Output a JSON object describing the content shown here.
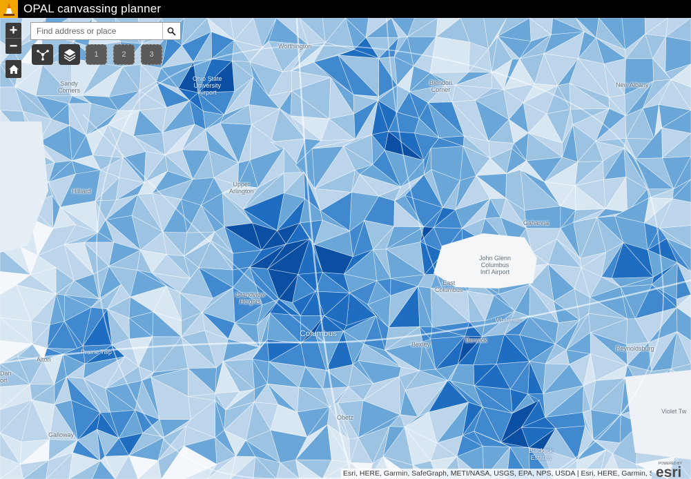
{
  "app": {
    "title": "OPAL canvassing planner",
    "logo_icon": "traffic-cone-icon"
  },
  "search": {
    "placeholder": "Find address or place",
    "value": ""
  },
  "zoom": {
    "in_label": "+",
    "out_label": "−"
  },
  "tools": {
    "numbers": [
      "1",
      "2",
      "3"
    ]
  },
  "places": {
    "worthington": "Worthington",
    "sandy_corners": "Sandy\nCorners",
    "airport_osu": "Ohio State\nUniversity\nAirport",
    "blendon_corner": "Blendon\nCorner",
    "new_albany": "New Albany",
    "hilliard": "Hilliard",
    "upper_arlington": "Upper\nArlington",
    "gahanna": "Gahanna",
    "john_glenn": "John Glenn\nColumbus\nInt'l Airport",
    "east_columbus": "East\nColumbus",
    "grandview": "Grandview\nHeights",
    "whitehall": "Whitehall",
    "columbus": "Columbus",
    "bexley": "Bexley",
    "berwick": "Berwick",
    "reynoldsburg": "Reynoldsburg",
    "alton": "Alton",
    "dan": "Dan\nort",
    "prairie": "Prairie Twp",
    "galloway": "Galloway",
    "obetz": "Obetz",
    "blacklick": "Blacklick\nEstates",
    "violet": "Violet Tw"
  },
  "attribution": "Esri, HERE, Garmin, SafeGraph, METI/NASA, USGS, EPA, NPS, USDA | Esri, HERE, Garmin, Saf...",
  "esri_logo": {
    "powered_by": "POWERED BY",
    "word": "esri"
  },
  "palette": [
    "#f4f8fc",
    "#d9e7f3",
    "#bcd5ea",
    "#9dc3e3",
    "#6aa7d8",
    "#4189cf",
    "#1f6dc0",
    "#0b4fa3"
  ]
}
